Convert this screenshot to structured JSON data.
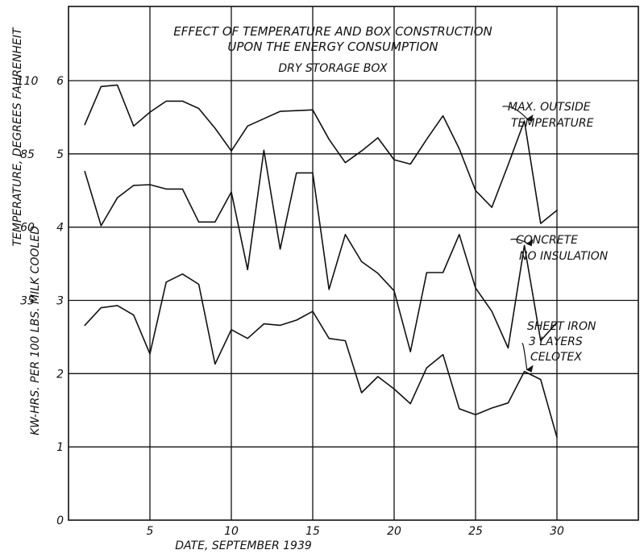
{
  "chart_data": {
    "type": "line",
    "title": "EFFECT OF TEMPERATURE AND BOX CONSTRUCTION",
    "subtitle": "UPON THE ENERGY CONSUMPTION",
    "subtitle2": "DRY STORAGE BOX",
    "xlabel": "DATE, SEPTEMBER 1939",
    "ylabel_left": "TEMPERATURE, DEGREES FAHRENHEIT",
    "ylabel_right": "KW-HRS. PER 100 LBS. MILK COOLED",
    "xlim": [
      0,
      35
    ],
    "ylim": [
      0,
      6
    ],
    "x_ticks": [
      5,
      10,
      15,
      20,
      25,
      30
    ],
    "x_tick_labels": [
      "5",
      "10",
      "15",
      "20",
      "25",
      "30"
    ],
    "y_ticks": [
      0,
      1,
      2,
      3,
      4,
      5,
      6
    ],
    "y_tick_labels": [
      "0",
      "1",
      "2",
      "3",
      "4",
      "5",
      "6"
    ],
    "temp_ticks": [
      {
        "y": 3,
        "label": "35"
      },
      {
        "y": 4,
        "label": "60"
      },
      {
        "y": 5,
        "label": "85"
      },
      {
        "y": 6,
        "label": "110"
      }
    ],
    "grid": true,
    "series": [
      {
        "name": "MAX. OUTSIDE TEMPERATURE",
        "label_lines": [
          "MAX. OUTSIDE",
          "TEMPERATURE"
        ],
        "x": [
          1,
          2,
          3,
          4,
          5,
          6,
          7,
          8,
          9,
          10,
          11,
          12,
          13,
          14,
          15,
          16,
          17,
          18,
          19,
          20,
          21,
          22,
          23,
          24,
          25,
          26,
          27,
          28,
          29,
          30
        ],
        "y": [
          5.4,
          5.92,
          5.94,
          5.38,
          5.57,
          5.72,
          5.72,
          5.62,
          5.35,
          5.04,
          5.38,
          5.48,
          5.58,
          5.59,
          5.6,
          5.2,
          4.88,
          5.04,
          5.22,
          4.92,
          4.86,
          5.2,
          5.52,
          5.07,
          4.5,
          4.27,
          4.85,
          5.45,
          4.05,
          4.23
        ],
        "label_anchor_x": 28
      },
      {
        "name": "CONCRETE NO INSULATION",
        "label_lines": [
          "CONCRETE",
          "NO INSULATION"
        ],
        "x": [
          1,
          2,
          3,
          4,
          5,
          6,
          7,
          8,
          9,
          10,
          11,
          12,
          13,
          14,
          15,
          16,
          17,
          18,
          19,
          20,
          21,
          22,
          23,
          24,
          25,
          26,
          27,
          28,
          29,
          30
        ],
        "y": [
          4.76,
          4.02,
          4.4,
          4.57,
          4.58,
          4.52,
          4.52,
          4.07,
          4.07,
          4.48,
          3.42,
          5.05,
          3.7,
          4.74,
          4.74,
          3.15,
          3.9,
          3.53,
          3.37,
          3.13,
          2.3,
          3.38,
          3.38,
          3.9,
          3.17,
          2.85,
          2.35,
          3.75,
          2.45,
          2.7
        ],
        "label_anchor_x": 28
      },
      {
        "name": "SHEET IRON 3 LAYERS CELOTEX",
        "label_lines": [
          "SHEET IRON",
          "3 LAYERS",
          "CELOTEX"
        ],
        "x": [
          1,
          2,
          3,
          4,
          5,
          6,
          7,
          8,
          9,
          10,
          11,
          12,
          13,
          14,
          15,
          16,
          17,
          18,
          19,
          20,
          21,
          22,
          23,
          24,
          25,
          26,
          27,
          28,
          29,
          30
        ],
        "y": [
          2.66,
          2.9,
          2.93,
          2.8,
          2.27,
          3.25,
          3.36,
          3.22,
          2.13,
          2.6,
          2.48,
          2.68,
          2.66,
          2.73,
          2.85,
          2.48,
          2.45,
          1.74,
          1.96,
          1.79,
          1.59,
          2.08,
          2.26,
          1.52,
          1.44,
          1.53,
          1.6,
          2.03,
          1.92,
          1.13
        ],
        "label_anchor_x": 28
      }
    ]
  }
}
